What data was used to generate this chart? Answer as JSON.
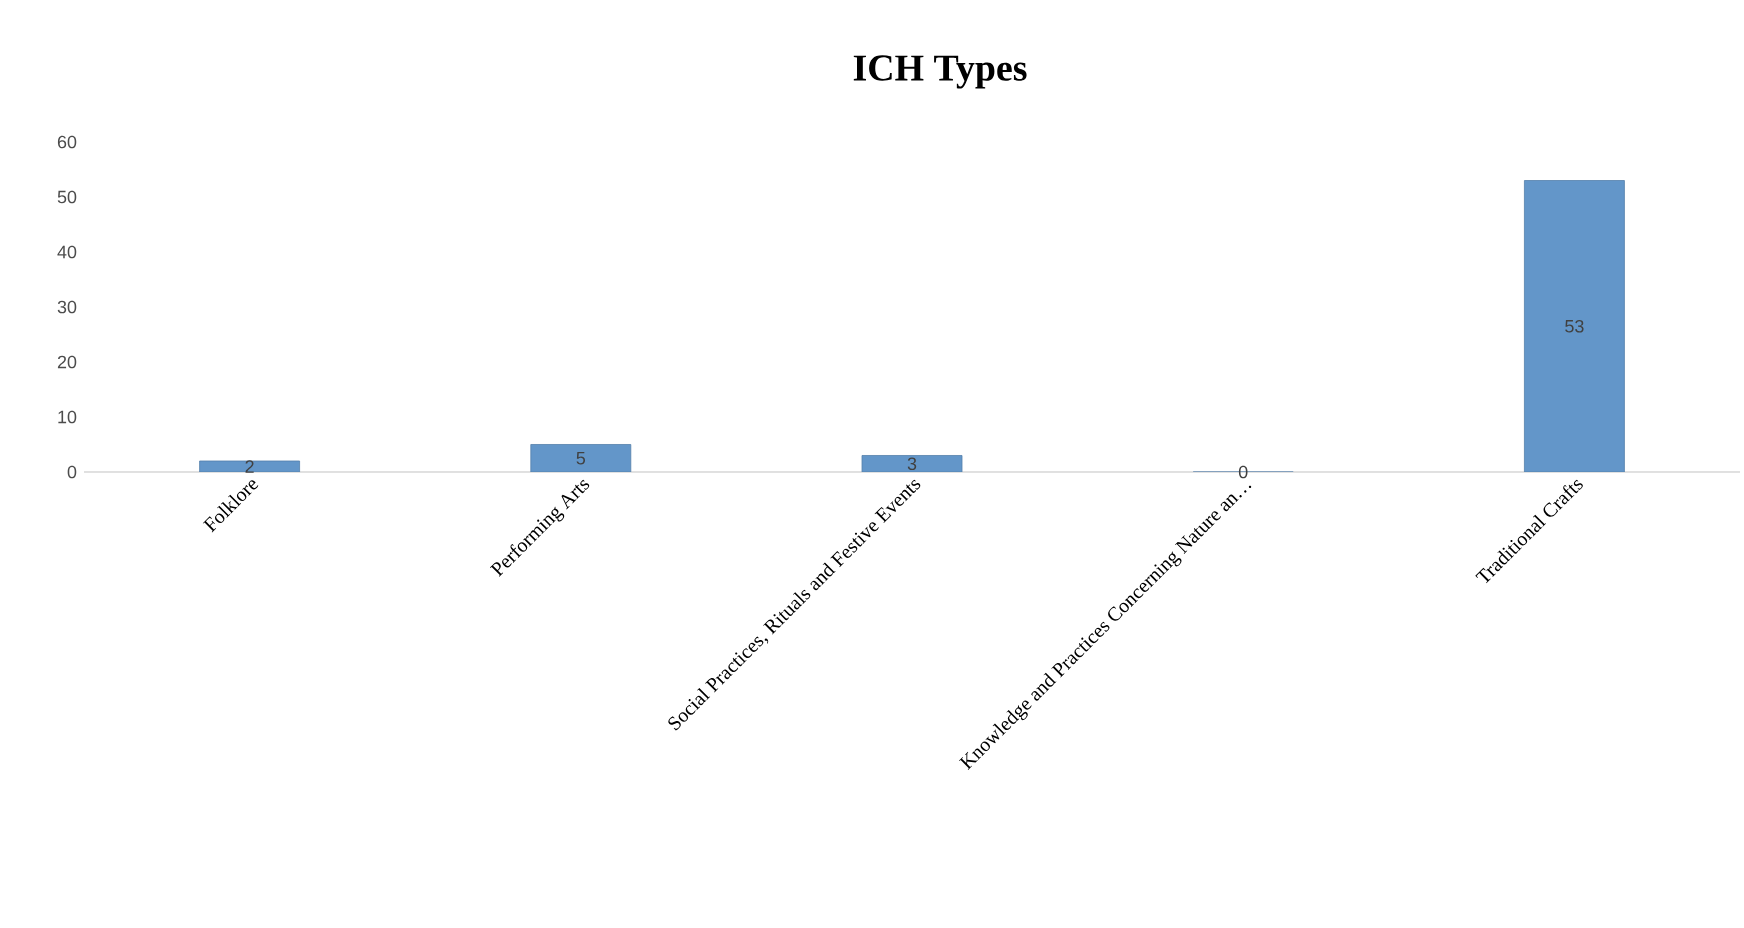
{
  "chart_data": {
    "type": "bar",
    "title": "ICH Types",
    "categories": [
      "Folklore",
      "Performing Arts",
      "Social Practices, Rituals and Festive Events",
      "Knowledge and Practices Concerning Nature an…",
      "Traditional Crafts"
    ],
    "values": [
      2,
      5,
      3,
      0,
      53
    ],
    "color": "#6396c9",
    "ylim": [
      0,
      60
    ],
    "yticks": [
      0,
      10,
      20,
      30,
      40,
      50,
      60
    ],
    "data_labels": true
  }
}
